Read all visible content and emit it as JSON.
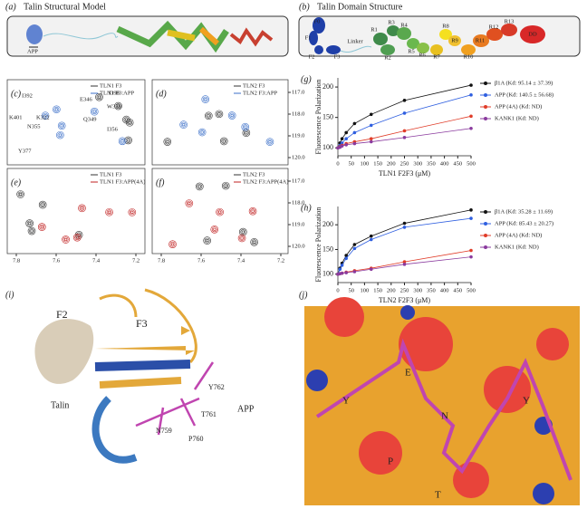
{
  "panel_a": {
    "label": "(a)",
    "title": "Talin Structural Model",
    "annotation": "APP"
  },
  "panel_b": {
    "label": "(b)",
    "title": "Talin Domain Structure",
    "domains": [
      "F0",
      "F1",
      "F2",
      "F3",
      "Linker",
      "R1",
      "R2",
      "R3",
      "R4",
      "R5",
      "R6",
      "R7",
      "R8",
      "R9",
      "R10",
      "R11",
      "R12",
      "R13",
      "DD"
    ]
  },
  "nmr": [
    {
      "label": "(c)",
      "legend": [
        "TLN1 F3",
        "TLN1 F3:APP"
      ],
      "peaks": [
        "I392",
        "K401",
        "K322",
        "E346",
        "I398",
        "W359",
        "Q349",
        "N355",
        "I356",
        "Y377"
      ]
    },
    {
      "label": "(d)",
      "legend": [
        "TLN2 F3",
        "TLN2 F3:APP"
      ]
    },
    {
      "label": "(e)",
      "legend": [
        "TLN1 F3",
        "TLN1 F3:APP(4A)"
      ]
    },
    {
      "label": "(f)",
      "legend": [
        "TLN2 F3",
        "TLN2 F3:APP(4A)"
      ]
    }
  ],
  "nmr_xticks": [
    7.8,
    7.6,
    7.4,
    7.2
  ],
  "nmr_yticks": [
    {
      "value": 117,
      "label": "117.0"
    },
    {
      "value": 118,
      "label": "118.0"
    },
    {
      "value": 119,
      "label": "119.0"
    },
    {
      "value": 120,
      "label": "120.0"
    }
  ],
  "chart_data": [
    {
      "type": "line",
      "label": "(g)",
      "x_label": "TLN1 F2F3 (μM)",
      "y_label": "Fluorescence Polarization",
      "x": [
        0,
        7.8,
        15.6,
        31.25,
        62.5,
        125,
        250,
        500
      ],
      "xlim": [
        0,
        500
      ],
      "xticks": [
        0,
        50,
        100,
        150,
        200,
        250,
        300,
        350,
        400,
        450,
        500
      ],
      "ylim": [
        87,
        215
      ],
      "yticks": [
        100,
        150,
        200
      ],
      "series": [
        {
          "name": "β1A (Kd: 95.14 ± 37.39)",
          "color": "#111111",
          "values": [
            100,
            108,
            115,
            125,
            140,
            155,
            178,
            203
          ]
        },
        {
          "name": "APP (Kd: 140.5 ± 56.68)",
          "color": "#2f5fe0",
          "values": [
            100,
            104,
            108,
            115,
            125,
            137,
            157,
            187
          ]
        },
        {
          "name": "APP (4A) (Kd: ND)",
          "color": "#e03c28",
          "values": [
            100,
            102,
            104,
            107,
            110,
            115,
            128,
            152
          ]
        },
        {
          "name": "KANK1 (Kd: ND)",
          "color": "#8a3a9e",
          "values": [
            100,
            101,
            103,
            105,
            107,
            110,
            117,
            132
          ]
        }
      ]
    },
    {
      "type": "line",
      "label": "(h)",
      "x_label": "TLN2 F2F3 (μM)",
      "y_label": "Fluorescence Polarization",
      "x": [
        0,
        7.8,
        15.6,
        31.25,
        62.5,
        125,
        250,
        500
      ],
      "xlim": [
        0,
        500
      ],
      "xticks": [
        0,
        50,
        100,
        150,
        200,
        250,
        300,
        350,
        400,
        450,
        500
      ],
      "ylim": [
        83,
        237
      ],
      "yticks": [
        100,
        150,
        200
      ],
      "series": [
        {
          "name": "β1A (Kd: 35.28 ± 11.69)",
          "color": "#111111",
          "values": [
            100,
            112,
            122,
            138,
            160,
            177,
            203,
            230
          ]
        },
        {
          "name": "APP (Kd: 85.43 ± 20.27)",
          "color": "#2f5fe0",
          "values": [
            100,
            110,
            118,
            132,
            152,
            170,
            195,
            213
          ]
        },
        {
          "name": "APP (4A) (Kd: ND)",
          "color": "#e03c28",
          "values": [
            100,
            101,
            102,
            104,
            107,
            112,
            125,
            148
          ]
        },
        {
          "name": "KANK1 (Kd: ND)",
          "color": "#8a3a9e",
          "values": [
            100,
            101,
            102,
            103,
            105,
            110,
            120,
            135
          ]
        }
      ]
    }
  ],
  "panel_i": {
    "label": "(i)",
    "annotations": [
      "F2",
      "F3",
      "Talin",
      "APP",
      "Y762",
      "N759",
      "T761",
      "P760"
    ]
  },
  "panel_j": {
    "label": "(j)",
    "annotations": [
      "E",
      "Y",
      "N",
      "P",
      "T",
      "Y"
    ]
  }
}
